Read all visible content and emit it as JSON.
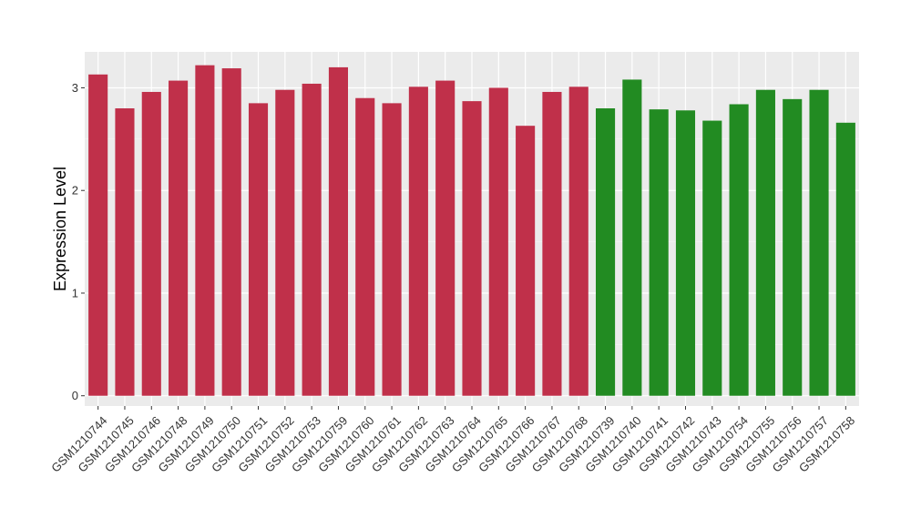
{
  "chart_data": {
    "type": "bar",
    "ylabel": "Expression Level",
    "xlabel": "",
    "ylim": [
      -0.1,
      3.35
    ],
    "yticks": [
      0,
      1,
      2,
      3
    ],
    "grid": true,
    "categories": [
      "GSM1210744",
      "GSM1210745",
      "GSM1210746",
      "GSM1210748",
      "GSM1210749",
      "GSM1210750",
      "GSM1210751",
      "GSM1210752",
      "GSM1210753",
      "GSM1210759",
      "GSM1210760",
      "GSM1210761",
      "GSM1210762",
      "GSM1210763",
      "GSM1210764",
      "GSM1210765",
      "GSM1210766",
      "GSM1210767",
      "GSM1210768",
      "GSM1210739",
      "GSM1210740",
      "GSM1210741",
      "GSM1210742",
      "GSM1210743",
      "GSM1210754",
      "GSM1210755",
      "GSM1210756",
      "GSM1210757",
      "GSM1210758"
    ],
    "values": [
      3.13,
      2.8,
      2.96,
      3.07,
      3.22,
      3.19,
      2.85,
      2.98,
      3.04,
      3.2,
      2.9,
      2.85,
      3.01,
      3.07,
      2.87,
      3.0,
      2.63,
      2.96,
      3.01,
      2.8,
      3.08,
      2.79,
      2.78,
      2.68,
      2.84,
      2.98,
      2.89,
      2.98,
      2.66
    ],
    "groups": [
      0,
      0,
      0,
      0,
      0,
      0,
      0,
      0,
      0,
      0,
      0,
      0,
      0,
      0,
      0,
      0,
      0,
      0,
      0,
      1,
      1,
      1,
      1,
      1,
      1,
      1,
      1,
      1,
      1
    ],
    "colors": {
      "group0": "#c0304a",
      "group1": "#228b22",
      "panel": "#ebebeb",
      "grid_major": "#ffffff",
      "grid_minor": "#f5f5f5"
    }
  }
}
